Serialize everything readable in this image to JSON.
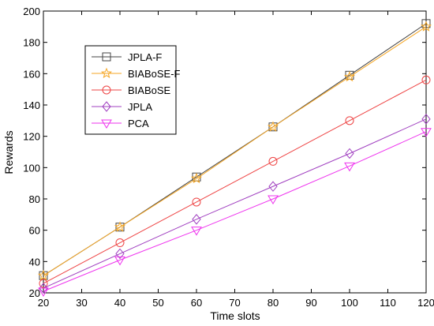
{
  "chart_data": {
    "type": "line",
    "xlabel": "Time slots",
    "ylabel": "Rewards",
    "xlim": [
      20,
      120
    ],
    "ylim": [
      20,
      200
    ],
    "xticks": [
      20,
      30,
      40,
      50,
      60,
      70,
      80,
      90,
      100,
      110,
      120
    ],
    "yticks": [
      20,
      40,
      60,
      80,
      100,
      120,
      140,
      160,
      180,
      200
    ],
    "grid": false,
    "legend_position": "top-left",
    "x": [
      20,
      40,
      60,
      80,
      100,
      120
    ],
    "series": [
      {
        "name": "JPLA-F",
        "values": [
          31,
          62,
          94,
          126,
          159,
          192
        ],
        "color": "#444444",
        "marker": "square"
      },
      {
        "name": "BIABoSE-F",
        "values": [
          31,
          62,
          93,
          126,
          158,
          190
        ],
        "color": "#f5a623",
        "marker": "star"
      },
      {
        "name": "BIABoSE",
        "values": [
          26,
          52,
          78,
          104,
          130,
          156
        ],
        "color": "#ee4444",
        "marker": "circle"
      },
      {
        "name": "JPLA",
        "values": [
          23,
          45,
          67,
          88,
          109,
          131
        ],
        "color": "#a040c0",
        "marker": "diamond"
      },
      {
        "name": "PCA",
        "values": [
          21,
          41,
          60,
          80,
          101,
          123
        ],
        "color": "#ee33ee",
        "marker": "triangle-down"
      }
    ]
  }
}
